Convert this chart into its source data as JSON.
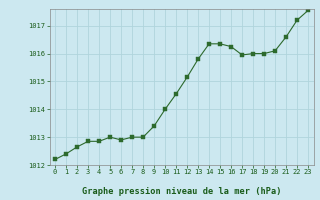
{
  "x": [
    0,
    1,
    2,
    3,
    4,
    5,
    6,
    7,
    8,
    9,
    10,
    11,
    12,
    13,
    14,
    15,
    16,
    17,
    18,
    19,
    20,
    21,
    22,
    23
  ],
  "y": [
    1012.2,
    1012.4,
    1012.65,
    1012.85,
    1012.85,
    1013.0,
    1012.9,
    1013.0,
    1013.0,
    1013.4,
    1014.0,
    1014.55,
    1015.15,
    1015.8,
    1016.35,
    1016.35,
    1016.25,
    1015.95,
    1016.0,
    1016.0,
    1016.1,
    1016.6,
    1017.2,
    1017.55
  ],
  "line_color": "#2d6a2d",
  "marker": "s",
  "marker_size": 2.2,
  "bg_color": "#cce8f0",
  "grid_color": "#b0d4dc",
  "title": "Graphe pression niveau de la mer (hPa)",
  "ylim": [
    1012.0,
    1017.6
  ],
  "yticks": [
    1012,
    1013,
    1014,
    1015,
    1016,
    1017
  ],
  "xticks": [
    0,
    1,
    2,
    3,
    4,
    5,
    6,
    7,
    8,
    9,
    10,
    11,
    12,
    13,
    14,
    15,
    16,
    17,
    18,
    19,
    20,
    21,
    22,
    23
  ],
  "tick_fontsize": 5.0,
  "title_fontsize": 6.2,
  "title_color": "#1a5c1a",
  "tick_color": "#1a5c1a",
  "axis_color": "#888888"
}
